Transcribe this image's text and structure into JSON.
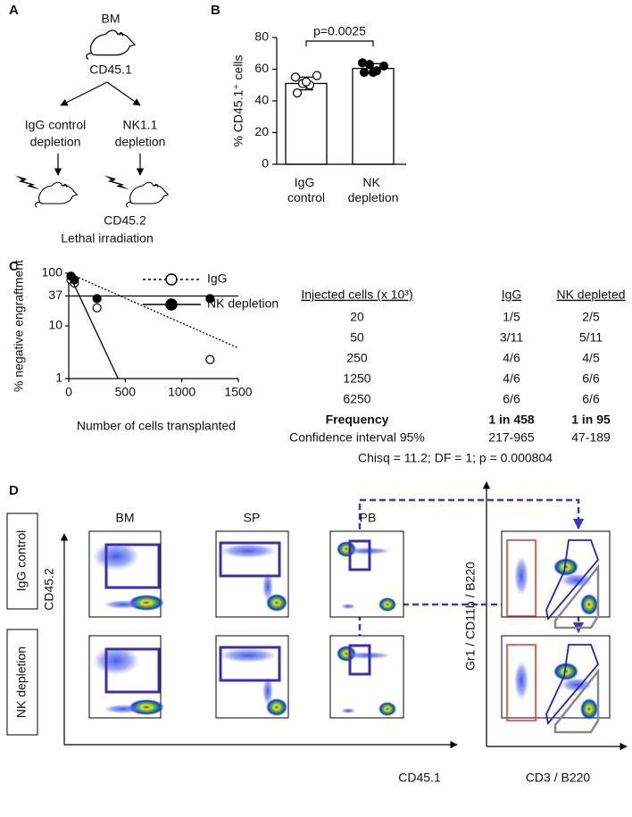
{
  "panel_labels": [
    "A",
    "B",
    "C",
    "D"
  ],
  "panel_a": {
    "donor": "BM",
    "donor_marker": "CD45.1",
    "left_arm": [
      "IgG control",
      "depletion"
    ],
    "right_arm": [
      "NK1.1",
      "depletion"
    ],
    "recipient_marker": "CD45.2",
    "recipient": "Lethal irradiation"
  },
  "chart_data": [
    {
      "type": "bar",
      "y_label": "% CD45.1⁺ cells",
      "categories": [
        "IgG control",
        "NK depletion"
      ],
      "values": [
        51,
        60.5
      ],
      "errors": [
        4,
        3
      ],
      "points": [
        [
          55,
          56,
          51,
          50,
          52,
          45
        ],
        [
          64,
          62,
          63,
          59,
          58,
          58
        ]
      ],
      "markers": [
        "open",
        "filled"
      ],
      "color": "#ffffff",
      "ylim": [
        0,
        80
      ],
      "yticks": [
        0,
        20,
        40,
        60,
        80
      ],
      "annotation": "p=0.0025"
    },
    {
      "type": "line",
      "x_label": "Number of cells transplanted",
      "y_label": "% negative engraftment",
      "yscale": "log",
      "xlim": [
        0,
        1500
      ],
      "xticks": [
        0,
        500,
        1000,
        1500
      ],
      "ylim": [
        1,
        100
      ],
      "yticks": [
        1,
        10,
        37,
        100
      ],
      "reference_line": 37,
      "legend": "top-right",
      "series": [
        {
          "name": "IgG",
          "marker": "open",
          "dashed": true,
          "color": "#000000",
          "x": [
            20,
            50,
            250,
            1250
          ],
          "values": [
            75,
            65,
            22,
            2.3
          ],
          "fit_x": [
            0,
            1500
          ],
          "fit_values": [
            100,
            3.8
          ]
        },
        {
          "name": "NK depletion",
          "marker": "filled",
          "dashed": false,
          "color": "#000000",
          "x": [
            20,
            50,
            250,
            1250
          ],
          "values": [
            88,
            75,
            33,
            33
          ],
          "fit_x": [
            0,
            437
          ],
          "fit_values": [
            100,
            1
          ]
        }
      ]
    }
  ],
  "table": {
    "header": [
      "Injected cells (x 10³)",
      "IgG",
      "NK depleted"
    ],
    "rows": [
      [
        "20",
        "1/5",
        "2/5"
      ],
      [
        "50",
        "3/11",
        "5/11"
      ],
      [
        "250",
        "4/6",
        "4/5"
      ],
      [
        "1250",
        "4/6",
        "6/6"
      ],
      [
        "6250",
        "6/6",
        "6/6"
      ],
      [
        "Frequency",
        "1 in 458",
        "1 in 95"
      ],
      [
        "Confidence interval 95%",
        "217-965",
        "47-189"
      ]
    ],
    "footnote": "Chisq = 11.2; DF = 1; p = 0.000804"
  },
  "panel_d": {
    "tissues": [
      "BM",
      "SP",
      "PB"
    ],
    "rows": [
      "IgG control",
      "NK depletion"
    ],
    "x_axis": "CD45.1",
    "y_axis": "CD45.2",
    "subset_x_axis": "CD3 / B220",
    "subset_y_axis": "Gr1 / CD11b / B220"
  }
}
